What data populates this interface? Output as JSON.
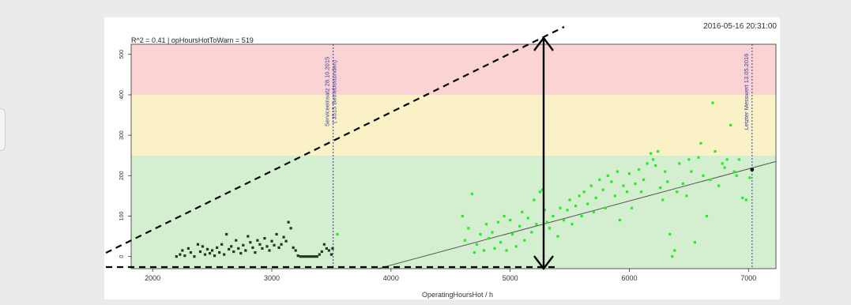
{
  "chart_data": {
    "type": "scatter",
    "timestamp": "2016-05-16 20:31:00",
    "stats_label": "R^2 = 0.41 | opHoursHotToWarn = 519",
    "xlabel": "OperatingHoursHot / h",
    "ylabel": "",
    "xlim": [
      1820,
      7230
    ],
    "ylim": [
      -30,
      525
    ],
    "x_ticks": [
      2000,
      3000,
      4000,
      5000,
      6000,
      7000
    ],
    "y_ticks": [
      0,
      100,
      200,
      300,
      400,
      500
    ],
    "bands": [
      {
        "from": -30,
        "to": 250,
        "color": "#d4efcf"
      },
      {
        "from": 250,
        "to": 400,
        "color": "#fbf1c6"
      },
      {
        "from": 400,
        "to": 525,
        "color": "#fcd3d3"
      }
    ],
    "vlines": [
      {
        "x": 3515,
        "label1": "Serviceeinsatz 28.10.2015",
        "label2": "( 3515 Betriebsstunden)"
      },
      {
        "x": 7030,
        "label1": "Letzter Messwert 13.05.2016",
        "label2": ""
      }
    ],
    "regression_line": {
      "x": [
        3890,
        7230
      ],
      "y": [
        -30,
        235
      ]
    },
    "last_point": {
      "x": 7030,
      "y": 215
    },
    "series": [
      {
        "color": "#1f3b1f",
        "points": [
          [
            2200,
            0
          ],
          [
            2230,
            5
          ],
          [
            2250,
            15
          ],
          [
            2270,
            2
          ],
          [
            2300,
            20
          ],
          [
            2320,
            10
          ],
          [
            2350,
            0
          ],
          [
            2380,
            30
          ],
          [
            2400,
            12
          ],
          [
            2420,
            25
          ],
          [
            2440,
            5
          ],
          [
            2460,
            18
          ],
          [
            2480,
            8
          ],
          [
            2500,
            15
          ],
          [
            2520,
            2
          ],
          [
            2540,
            22
          ],
          [
            2560,
            10
          ],
          [
            2580,
            30
          ],
          [
            2600,
            5
          ],
          [
            2620,
            55
          ],
          [
            2640,
            18
          ],
          [
            2660,
            25
          ],
          [
            2680,
            12
          ],
          [
            2700,
            40
          ],
          [
            2720,
            20
          ],
          [
            2740,
            8
          ],
          [
            2760,
            28
          ],
          [
            2780,
            15
          ],
          [
            2800,
            50
          ],
          [
            2820,
            35
          ],
          [
            2840,
            22
          ],
          [
            2860,
            10
          ],
          [
            2880,
            40
          ],
          [
            2900,
            30
          ],
          [
            2920,
            20
          ],
          [
            2940,
            45
          ],
          [
            2960,
            25
          ],
          [
            2980,
            15
          ],
          [
            3000,
            38
          ],
          [
            3020,
            28
          ],
          [
            3040,
            55
          ],
          [
            3060,
            22
          ],
          [
            3080,
            30
          ],
          [
            3100,
            48
          ],
          [
            3120,
            38
          ],
          [
            3140,
            85
          ],
          [
            3160,
            70
          ],
          [
            3180,
            22
          ],
          [
            3200,
            15
          ],
          [
            3220,
            2
          ],
          [
            3240,
            0
          ],
          [
            3260,
            0
          ],
          [
            3280,
            0
          ],
          [
            3300,
            0
          ],
          [
            3320,
            0
          ],
          [
            3340,
            0
          ],
          [
            3360,
            0
          ],
          [
            3380,
            0
          ],
          [
            3400,
            5
          ],
          [
            3420,
            12
          ],
          [
            3440,
            30
          ],
          [
            3460,
            20
          ],
          [
            3480,
            15
          ],
          [
            3500,
            5
          ],
          [
            3510,
            20
          ]
        ]
      },
      {
        "color": "#22ee22",
        "points": [
          [
            3550,
            55
          ],
          [
            4600,
            100
          ],
          [
            4620,
            40
          ],
          [
            4650,
            70
          ],
          [
            4680,
            155
          ],
          [
            4700,
            10
          ],
          [
            4720,
            30
          ],
          [
            4750,
            55
          ],
          [
            4780,
            15
          ],
          [
            4800,
            80
          ],
          [
            4820,
            45
          ],
          [
            4850,
            60
          ],
          [
            4870,
            20
          ],
          [
            4900,
            85
          ],
          [
            4920,
            35
          ],
          [
            4950,
            100
          ],
          [
            4970,
            15
          ],
          [
            5000,
            90
          ],
          [
            5020,
            55
          ],
          [
            5050,
            25
          ],
          [
            5080,
            75
          ],
          [
            5100,
            110
          ],
          [
            5120,
            40
          ],
          [
            5150,
            95
          ],
          [
            5180,
            60
          ],
          [
            5200,
            140
          ],
          [
            5220,
            80
          ],
          [
            5250,
            160
          ],
          [
            5270,
            165
          ],
          [
            5290,
            115
          ],
          [
            5310,
            85
          ],
          [
            5330,
            70
          ],
          [
            5360,
            100
          ],
          [
            5400,
            50
          ],
          [
            5420,
            120
          ],
          [
            5450,
            90
          ],
          [
            5480,
            115
          ],
          [
            5500,
            140
          ],
          [
            5520,
            80
          ],
          [
            5550,
            125
          ],
          [
            5580,
            150
          ],
          [
            5600,
            100
          ],
          [
            5620,
            160
          ],
          [
            5650,
            130
          ],
          [
            5680,
            175
          ],
          [
            5700,
            110
          ],
          [
            5720,
            145
          ],
          [
            5750,
            190
          ],
          [
            5780,
            165
          ],
          [
            5800,
            120
          ],
          [
            5820,
            200
          ],
          [
            5850,
            185
          ],
          [
            5880,
            150
          ],
          [
            5900,
            210
          ],
          [
            5920,
            90
          ],
          [
            5950,
            175
          ],
          [
            5980,
            160
          ],
          [
            6000,
            205
          ],
          [
            6020,
            120
          ],
          [
            6050,
            180
          ],
          [
            6080,
            215
          ],
          [
            6100,
            160
          ],
          [
            6120,
            190
          ],
          [
            6150,
            230
          ],
          [
            6180,
            255
          ],
          [
            6200,
            240
          ],
          [
            6220,
            225
          ],
          [
            6240,
            260
          ],
          [
            6260,
            170
          ],
          [
            6280,
            140
          ],
          [
            6300,
            210
          ],
          [
            6320,
            185
          ],
          [
            6340,
            55
          ],
          [
            6360,
            0
          ],
          [
            6380,
            15
          ],
          [
            6400,
            160
          ],
          [
            6420,
            230
          ],
          [
            6450,
            180
          ],
          [
            6480,
            150
          ],
          [
            6500,
            240
          ],
          [
            6520,
            210
          ],
          [
            6550,
            35
          ],
          [
            6580,
            245
          ],
          [
            6600,
            280
          ],
          [
            6620,
            200
          ],
          [
            6650,
            100
          ],
          [
            6680,
            190
          ],
          [
            6700,
            380
          ],
          [
            6720,
            260
          ],
          [
            6750,
            175
          ],
          [
            6780,
            230
          ],
          [
            6800,
            220
          ],
          [
            6820,
            240
          ],
          [
            6850,
            325
          ],
          [
            6880,
            210
          ],
          [
            6900,
            200
          ],
          [
            6920,
            240
          ],
          [
            6950,
            145
          ],
          [
            6980,
            140
          ],
          [
            7010,
            195
          ]
        ]
      }
    ]
  }
}
